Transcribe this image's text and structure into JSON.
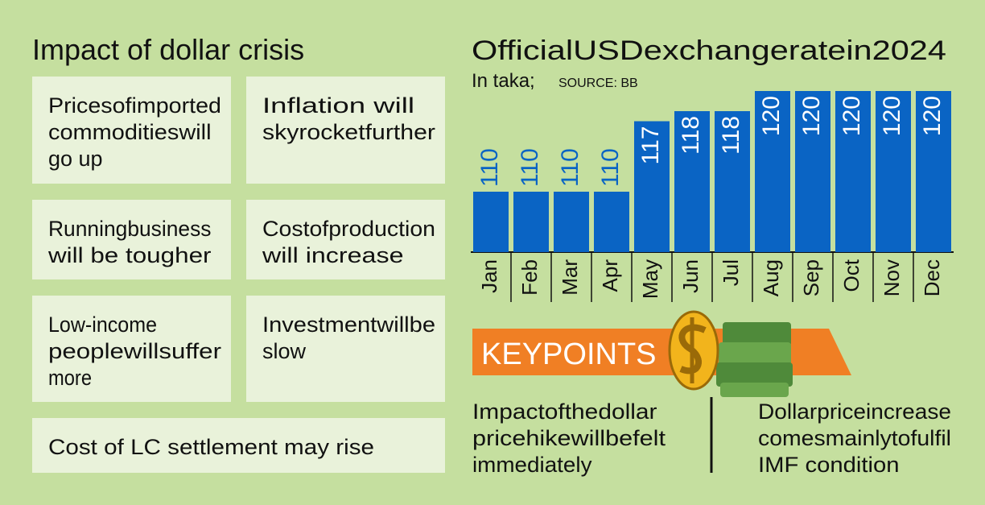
{
  "impact": {
    "title": "Impact of dollar crisis",
    "items": [
      [
        "Pricesofimported",
        "commoditieswill",
        "go up"
      ],
      [
        "Inflation will",
        "skyrocketfurther"
      ],
      [
        "Runningbusiness",
        "will be tougher"
      ],
      [
        "Costofproduction",
        "will increase"
      ],
      [
        "Low-income",
        "peoplewillsuffer",
        "more"
      ],
      [
        "Investmentwillbe",
        "slow"
      ],
      [
        "Cost of LC settlement may rise"
      ]
    ]
  },
  "chart_data": {
    "type": "bar",
    "title": "OfficialUSDexchangeratein2024",
    "subtitle": "In taka;",
    "source": "SOURCE: BB",
    "categories": [
      "Jan",
      "Feb",
      "Mar",
      "Apr",
      "May",
      "Jun",
      "Jul",
      "Aug",
      "Sep",
      "Oct",
      "Nov",
      "Dec"
    ],
    "values": [
      110,
      110,
      110,
      110,
      117,
      118,
      118,
      120,
      120,
      120,
      120,
      120
    ],
    "color": "#0a64c4",
    "ylim": [
      104,
      120
    ]
  },
  "keypoints": {
    "title": "KEYPOINTS",
    "items": [
      [
        "Impactofthedollar",
        "pricehikewillbefelt",
        "immediately"
      ],
      [
        "Dollarpriceincrease",
        "comesmainlytofulfil",
        "IMF condition"
      ]
    ]
  }
}
